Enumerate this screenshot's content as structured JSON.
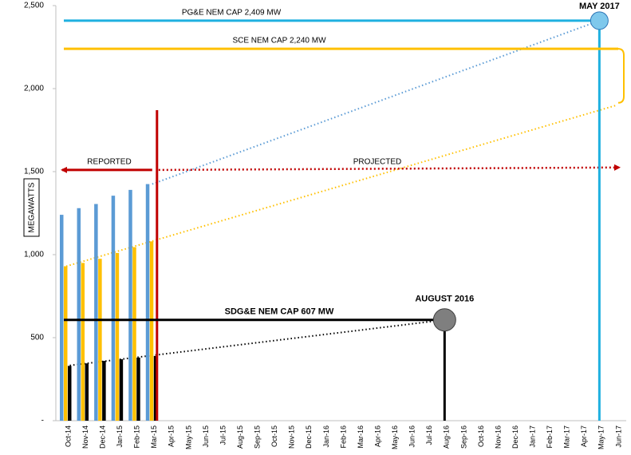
{
  "chart_data": {
    "type": "bar",
    "categories": [
      "Oct-14",
      "Nov-14",
      "Dec-14",
      "Jan-15",
      "Feb-15",
      "Mar-15",
      "Apr-15",
      "May-15",
      "Jun-15",
      "Jul-15",
      "Aug-15",
      "Sep-15",
      "Oct-15",
      "Nov-15",
      "Dec-15",
      "Jan-16",
      "Feb-16",
      "Mar-16",
      "Apr-16",
      "May-16",
      "Jun-16",
      "Jul-16",
      "Aug-16",
      "Sep-16",
      "Oct-16",
      "Nov-16",
      "Dec-16",
      "Jan-17",
      "Feb-17",
      "Mar-17",
      "Apr-17",
      "May-17",
      "Jun-17"
    ],
    "series": [
      {
        "color": "#5b9bd5",
        "values": [
          1240,
          1280,
          1305,
          1355,
          1390,
          1425,
          null,
          null,
          null,
          null,
          null,
          null,
          null,
          null,
          null,
          null,
          null,
          null,
          null,
          null,
          null,
          null,
          null,
          null,
          null,
          null,
          null,
          null,
          null,
          null,
          null,
          null,
          null
        ]
      },
      {
        "color": "#ffc000",
        "values": [
          930,
          950,
          975,
          1010,
          1045,
          1080,
          null,
          null,
          null,
          null,
          null,
          null,
          null,
          null,
          null,
          null,
          null,
          null,
          null,
          null,
          null,
          null,
          null,
          null,
          null,
          null,
          null,
          null,
          null,
          null,
          null,
          null,
          null
        ]
      },
      {
        "color": "#000000",
        "values": [
          330,
          345,
          360,
          370,
          380,
          390,
          null,
          null,
          null,
          null,
          null,
          null,
          null,
          null,
          null,
          null,
          null,
          null,
          null,
          null,
          null,
          null,
          null,
          null,
          null,
          null,
          null,
          null,
          null,
          null,
          null,
          null,
          null
        ]
      }
    ],
    "ylim": [
      0,
      2500
    ],
    "yticks": [
      {
        "value": 0,
        "label": "-"
      },
      500,
      {
        "value": 1000,
        "label": "1,000"
      },
      {
        "value": 1500,
        "label": "1,500"
      },
      {
        "value": 2000,
        "label": "2,000"
      },
      {
        "value": 2500,
        "label": "2,500"
      }
    ],
    "y_label": "MEGAWATTS",
    "caps": [
      {
        "label": "PG&E NEM CAP 2,409 MW",
        "value": 2409,
        "color": "#1fb0e0",
        "end": "May-17",
        "marker_label": "MAY 2017",
        "marker_color": "#7fc8ec"
      },
      {
        "label": "SCE NEM CAP 2,240 MW",
        "value": 2240,
        "color": "#ffc000"
      },
      {
        "label": "SDG&E NEM CAP 607 MW",
        "value": 607,
        "color": "#000000",
        "end": "Aug-16",
        "marker_label": "AUGUST 2016",
        "marker_color": "#7f7f7f"
      }
    ],
    "trends": [
      {
        "color": "#5b9bd5",
        "x": [
          "Mar-15",
          "May-17"
        ],
        "values": [
          1425,
          2409
        ]
      },
      {
        "color": "#ffc000",
        "x": [
          "Oct-14",
          "Jun-17"
        ],
        "values": [
          930,
          1900
        ]
      },
      {
        "color": "#000000",
        "x": [
          "Oct-14",
          "Aug-16"
        ],
        "values": [
          330,
          607
        ]
      }
    ],
    "divider": {
      "x": "Mar-15",
      "top": 1870,
      "color": "#c00000"
    },
    "reported": {
      "text": "REPORTED",
      "value": 1510,
      "color": "#c00000"
    },
    "projected": {
      "text": "PROJECTED",
      "values": [
        1510,
        1525
      ],
      "color": "#c00000"
    }
  }
}
